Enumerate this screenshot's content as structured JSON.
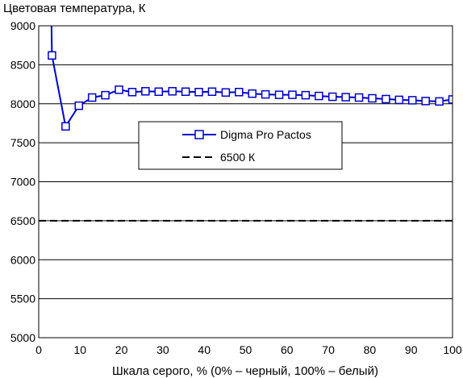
{
  "chart_data": {
    "type": "line",
    "ylabel": "Цветовая температура, К",
    "xlabel": "Шкала серого, % (0% – черный, 100% – белый)",
    "xlim": [
      0,
      100
    ],
    "ylim": [
      5000,
      9000
    ],
    "x_ticks": [
      "0",
      "10",
      "20",
      "30",
      "40",
      "50",
      "60",
      "70",
      "80",
      "90",
      "100"
    ],
    "y_ticks": [
      "5000",
      "5500",
      "6000",
      "6500",
      "7000",
      "7500",
      "8000",
      "8500",
      "9000"
    ],
    "grid": "horizontal",
    "legend_position": "center",
    "series": [
      {
        "name": "Digma Pro Pactos",
        "color": "#0000cc",
        "marker": "square-open",
        "points": [
          {
            "x": 3,
            "y": 9300,
            "marker": false
          },
          {
            "x": 3.2,
            "y": 8620
          },
          {
            "x": 6.5,
            "y": 7710
          },
          {
            "x": 9.7,
            "y": 7975
          },
          {
            "x": 12.9,
            "y": 8080
          },
          {
            "x": 16.1,
            "y": 8110
          },
          {
            "x": 19.4,
            "y": 8180
          },
          {
            "x": 22.6,
            "y": 8150
          },
          {
            "x": 25.8,
            "y": 8160
          },
          {
            "x": 29.0,
            "y": 8155
          },
          {
            "x": 32.3,
            "y": 8160
          },
          {
            "x": 35.5,
            "y": 8155
          },
          {
            "x": 38.7,
            "y": 8150
          },
          {
            "x": 41.9,
            "y": 8155
          },
          {
            "x": 45.2,
            "y": 8145
          },
          {
            "x": 48.4,
            "y": 8150
          },
          {
            "x": 51.6,
            "y": 8130
          },
          {
            "x": 54.8,
            "y": 8120
          },
          {
            "x": 58.1,
            "y": 8115
          },
          {
            "x": 61.3,
            "y": 8115
          },
          {
            "x": 64.5,
            "y": 8110
          },
          {
            "x": 67.7,
            "y": 8100
          },
          {
            "x": 71.0,
            "y": 8090
          },
          {
            "x": 74.2,
            "y": 8085
          },
          {
            "x": 77.4,
            "y": 8080
          },
          {
            "x": 80.6,
            "y": 8070
          },
          {
            "x": 83.9,
            "y": 8060
          },
          {
            "x": 87.1,
            "y": 8050
          },
          {
            "x": 90.3,
            "y": 8045
          },
          {
            "x": 93.5,
            "y": 8035
          },
          {
            "x": 96.8,
            "y": 8030
          },
          {
            "x": 100,
            "y": 8055
          }
        ]
      },
      {
        "name": "6500 К",
        "color": "#000000",
        "dash": true,
        "points": [
          {
            "x": 0,
            "y": 6500
          },
          {
            "x": 100,
            "y": 6500
          }
        ]
      }
    ]
  }
}
